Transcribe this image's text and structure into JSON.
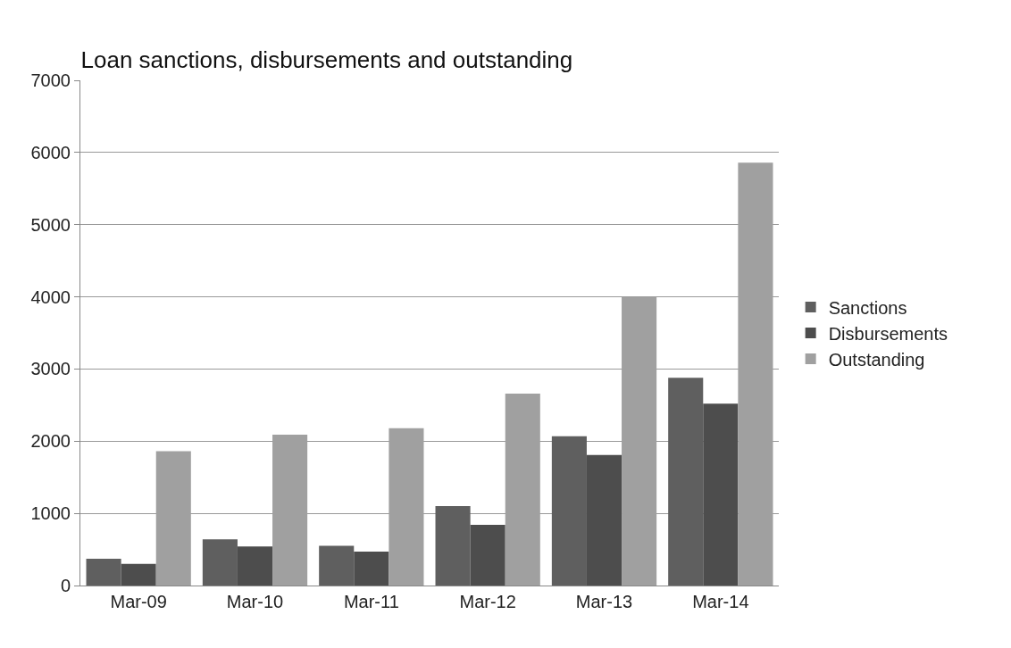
{
  "chart_data": {
    "type": "bar",
    "title": "Loan sanctions, disbursements and outstanding",
    "categories": [
      "Mar-09",
      "Mar-10",
      "Mar-11",
      "Mar-12",
      "Mar-13",
      "Mar-14"
    ],
    "series": [
      {
        "name": "Sanctions",
        "color": "#5f5f5f",
        "values": [
          370,
          640,
          550,
          1100,
          2070,
          2880
        ]
      },
      {
        "name": "Disbursements",
        "color": "#4d4d4d",
        "values": [
          300,
          540,
          470,
          840,
          1810,
          2520
        ]
      },
      {
        "name": "Outstanding",
        "color": "#a0a0a0",
        "values": [
          1860,
          2090,
          2180,
          2660,
          4000,
          5860
        ]
      }
    ],
    "ylim": [
      0,
      7000
    ],
    "yticks": [
      0,
      1000,
      2000,
      3000,
      4000,
      5000,
      6000,
      7000
    ],
    "grid": "y",
    "legend": "right"
  }
}
